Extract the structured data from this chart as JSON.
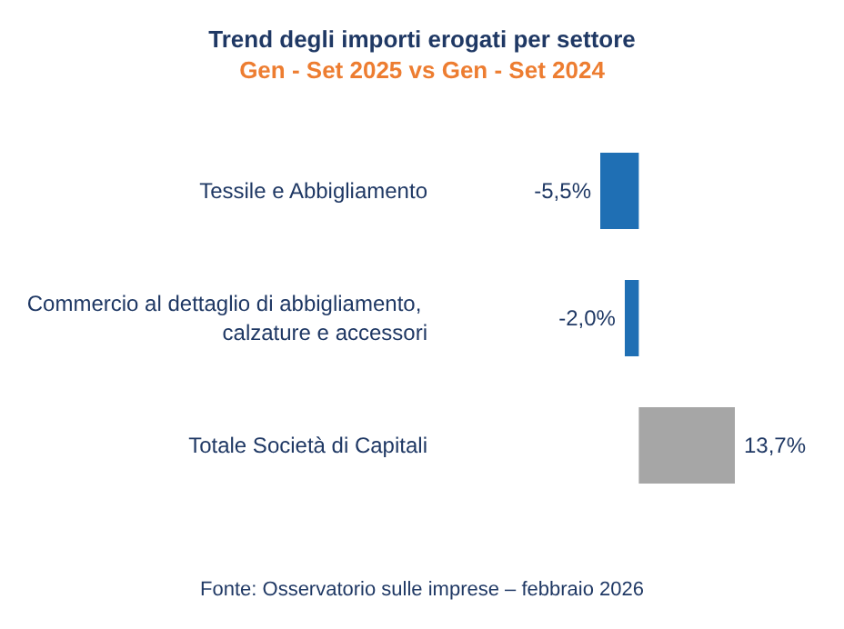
{
  "chart_data": {
    "type": "bar",
    "orientation": "horizontal",
    "title": "Trend degli importi erogati per settore",
    "subtitle": "Gen - Set 2025 vs Gen - Set 2024",
    "categories": [
      "Tessile e Abbigliamento",
      "Commercio al dettaglio di abbigliamento, calzature e accessori",
      "Totale Società di Capitali"
    ],
    "values": [
      -5.5,
      -2.0,
      13.7
    ],
    "colors": [
      "#1f6fb4",
      "#1f6fb4",
      "#a6a6a6"
    ],
    "value_labels": [
      "-5,5%",
      "-2,0%",
      "13,7%"
    ],
    "annotations": [
      "Fonte: Osservatorio sulle imprese – febbraio 2026"
    ]
  }
}
